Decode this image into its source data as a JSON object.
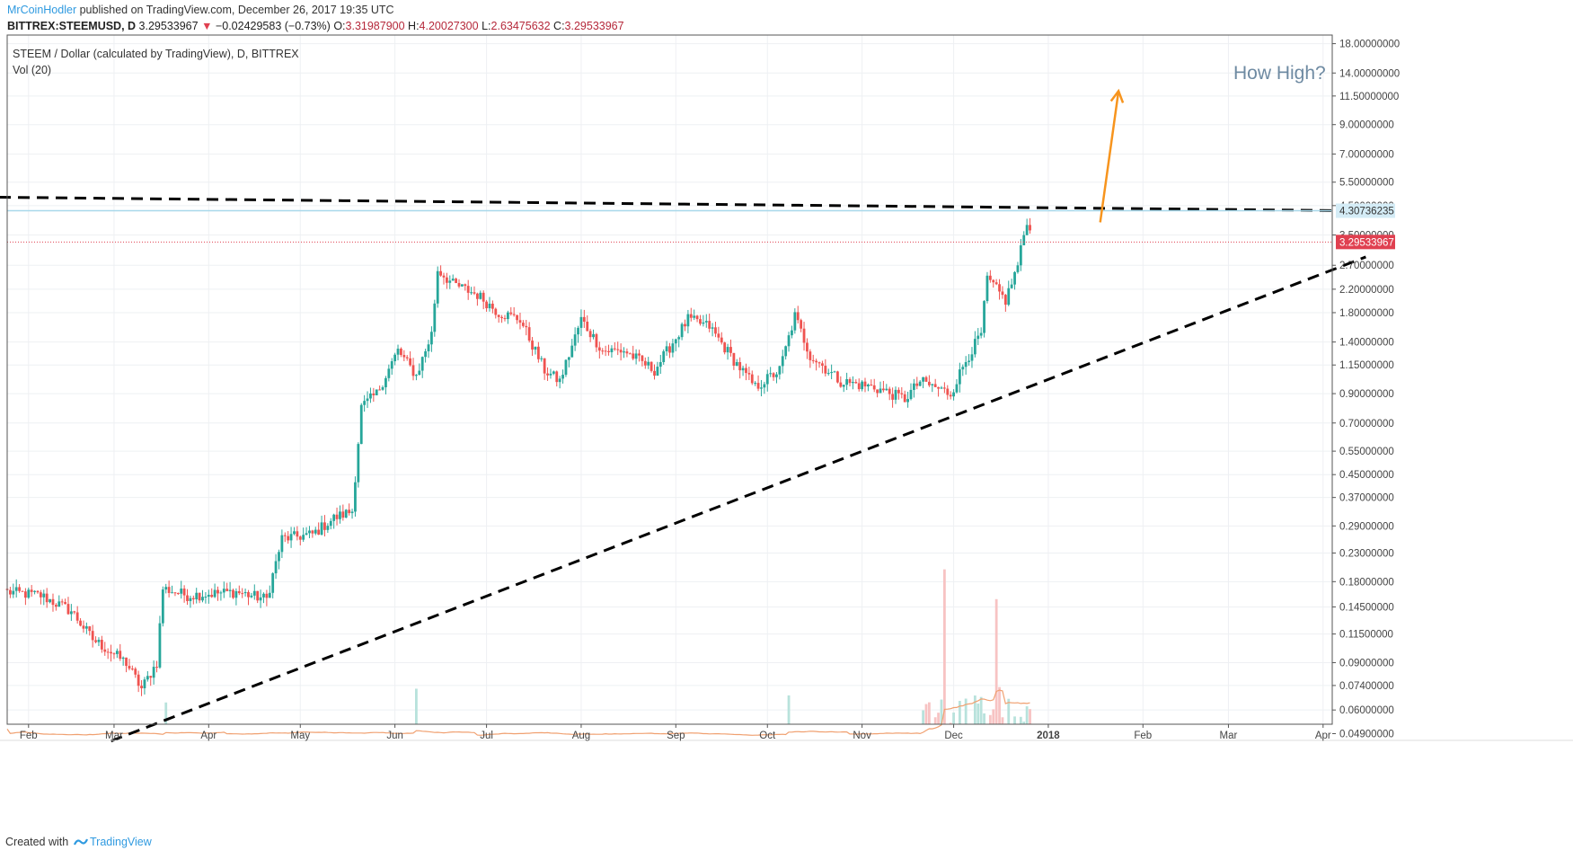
{
  "header": {
    "author": "MrCoinHodler",
    "published": "published on TradingView.com, December 26, 2017 19:35 UTC",
    "symbol": "BITTREX:STEEMUSD, D",
    "last": "3.29533967",
    "change_icon": "down-triangle-icon",
    "change": "−0.02429583 (−0.73%)",
    "open_label": "O:",
    "open": "3.31987900",
    "high_label": "H:",
    "high": "4.20027300",
    "low_label": "L:",
    "low": "2.63475632",
    "close_label": "C:",
    "close": "3.29533967"
  },
  "panel": {
    "title": "STEEM / Dollar (calculated by TradingView), D, BITTREX",
    "volume_label": "Vol (20)"
  },
  "annotation": {
    "text": "How High?"
  },
  "footer": {
    "created_with": "Created with",
    "brand": "TradingView"
  },
  "colors": {
    "up": "#26a69a",
    "down": "#ef5350",
    "resistance_line": "#a8d8ea",
    "last_price": "#e04050",
    "arrow": "#f7941d",
    "trendline": "#000000"
  },
  "chart_data": {
    "type": "candlestick",
    "y_scale": "log",
    "y_ticks": [
      "18.00000000",
      "14.00000000",
      "11.50000000",
      "9.00000000",
      "7.00000000",
      "5.50000000",
      "4.50000000",
      "3.50000000",
      "2.70000000",
      "2.20000000",
      "1.80000000",
      "1.40000000",
      "1.15000000",
      "0.90000000",
      "0.70000000",
      "0.55000000",
      "0.45000000",
      "0.37000000",
      "0.29000000",
      "0.23000000",
      "0.18000000",
      "0.14500000",
      "0.11500000",
      "0.09000000",
      "0.07400000",
      "0.06000000",
      "0.04900000"
    ],
    "x_ticks": [
      "Feb",
      "Mar",
      "Apr",
      "May",
      "Jun",
      "Jul",
      "Aug",
      "Sep",
      "Oct",
      "Nov",
      "Dec",
      "2018",
      "Feb",
      "Mar",
      "Apr"
    ],
    "price_labels": {
      "resistance": "4.30736235",
      "last": "3.29533967"
    },
    "anchors": [
      [
        "2017-01-25",
        0.165
      ],
      [
        "2017-02-05",
        0.16
      ],
      [
        "2017-02-15",
        0.14
      ],
      [
        "2017-02-22",
        0.11
      ],
      [
        "2017-03-05",
        0.09
      ],
      [
        "2017-03-10",
        0.072
      ],
      [
        "2017-03-15",
        0.09
      ],
      [
        "2017-03-17",
        0.17
      ],
      [
        "2017-03-25",
        0.16
      ],
      [
        "2017-04-10",
        0.165
      ],
      [
        "2017-04-20",
        0.155
      ],
      [
        "2017-04-25",
        0.26
      ],
      [
        "2017-05-05",
        0.27
      ],
      [
        "2017-05-12",
        0.31
      ],
      [
        "2017-05-18",
        0.33
      ],
      [
        "2017-05-21",
        0.8
      ],
      [
        "2017-05-26",
        0.9
      ],
      [
        "2017-06-02",
        1.3
      ],
      [
        "2017-06-08",
        1.05
      ],
      [
        "2017-06-13",
        1.5
      ],
      [
        "2017-06-15",
        2.6
      ],
      [
        "2017-06-20",
        2.3
      ],
      [
        "2017-06-28",
        2.1
      ],
      [
        "2017-07-05",
        1.8
      ],
      [
        "2017-07-12",
        1.7
      ],
      [
        "2017-07-20",
        1.1
      ],
      [
        "2017-07-25",
        1.0
      ],
      [
        "2017-08-01",
        1.7
      ],
      [
        "2017-08-08",
        1.3
      ],
      [
        "2017-08-15",
        1.3
      ],
      [
        "2017-08-25",
        1.1
      ],
      [
        "2017-09-05",
        1.7
      ],
      [
        "2017-09-12",
        1.6
      ],
      [
        "2017-09-20",
        1.2
      ],
      [
        "2017-09-27",
        0.95
      ],
      [
        "2017-10-05",
        1.1
      ],
      [
        "2017-10-10",
        1.75
      ],
      [
        "2017-10-15",
        1.25
      ],
      [
        "2017-10-25",
        1.0
      ],
      [
        "2017-11-05",
        0.95
      ],
      [
        "2017-11-15",
        0.86
      ],
      [
        "2017-11-20",
        1.0
      ],
      [
        "2017-11-30",
        0.9
      ],
      [
        "2017-12-05",
        1.2
      ],
      [
        "2017-12-10",
        1.5
      ],
      [
        "2017-12-12",
        2.4
      ],
      [
        "2017-12-18",
        2.0
      ],
      [
        "2017-12-22",
        2.7
      ],
      [
        "2017-12-25",
        4.0
      ],
      [
        "2017-12-27",
        3.2
      ],
      [
        "2017-12-29",
        3.3
      ]
    ],
    "volume_spikes": [
      [
        "2017-03-18",
        0.064
      ],
      [
        "2017-06-08",
        0.072
      ],
      [
        "2017-10-08",
        0.068
      ],
      [
        "2017-11-28",
        0.2
      ],
      [
        "2017-12-15",
        0.155
      ],
      [
        "2017-12-16",
        0.073
      ]
    ],
    "trendlines": [
      {
        "style": "dashed",
        "from": [
          "2017-02-28",
          0.046
        ],
        "to": [
          "2018-04-15",
          2.9
        ]
      },
      {
        "style": "dashed",
        "from": [
          "2017-01-10",
          4.85
        ],
        "to": [
          "2018-04-15",
          4.3
        ]
      }
    ],
    "horizontal_lines": [
      {
        "value": 4.30736235,
        "style": "solid"
      },
      {
        "value": 3.29533967,
        "style": "dotted"
      }
    ],
    "arrow": {
      "from": [
        "2018-01-18",
        3.9
      ],
      "to": [
        "2018-01-24",
        12.0
      ]
    }
  }
}
